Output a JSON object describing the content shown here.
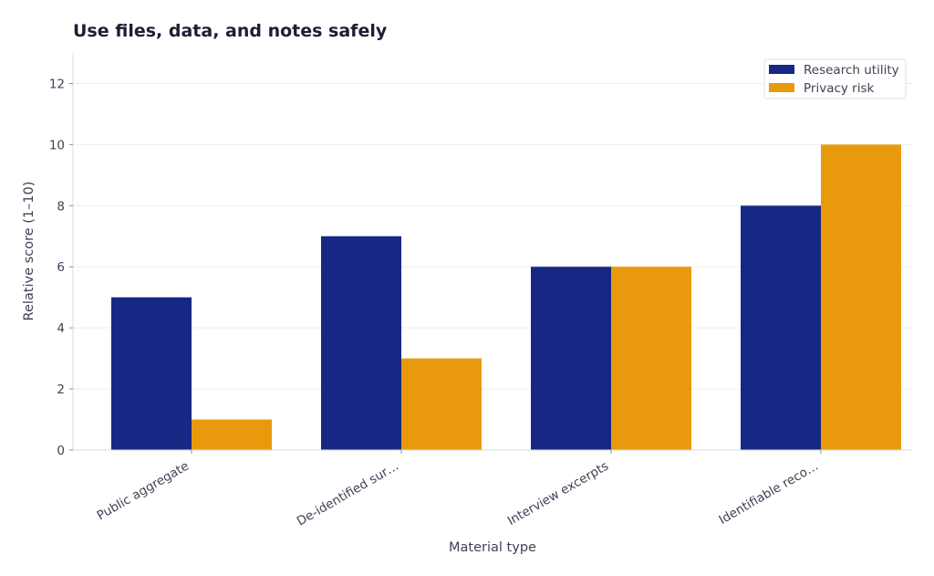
{
  "chart_data": {
    "type": "bar",
    "title": "Use files, data, and notes safely",
    "xlabel": "Material type",
    "ylabel": "Relative score (1–10)",
    "categories": [
      "Public aggregate",
      "De-identified sur…",
      "Interview excerpts",
      "Identifiable reco…"
    ],
    "series": [
      {
        "name": "Research utility",
        "values": [
          5,
          7,
          6,
          8
        ],
        "color": "#172884"
      },
      {
        "name": "Privacy risk",
        "values": [
          1,
          3,
          6,
          10
        ],
        "color": "#e89a0c"
      }
    ],
    "ylim": [
      0,
      13
    ],
    "yticks": [
      0,
      2,
      4,
      6,
      8,
      10,
      12
    ],
    "grid": true,
    "legend": "top-right"
  }
}
